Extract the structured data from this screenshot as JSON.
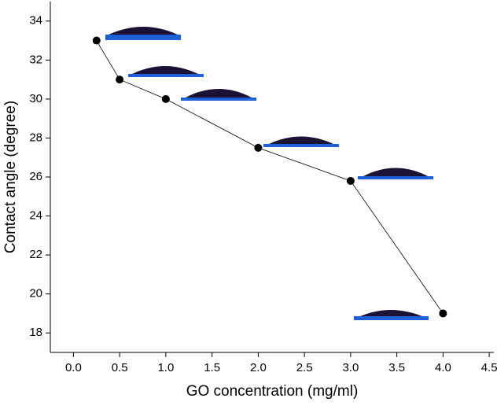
{
  "chart_data": {
    "type": "line",
    "x_label": "GO concentration (mg/ml)",
    "y_label": "Contact angle (degree)",
    "x": [
      0.25,
      0.5,
      1.0,
      2.0,
      3.0,
      4.0
    ],
    "series": [
      {
        "color": "#000000",
        "values": [
          33,
          31,
          30,
          27.5,
          25.8,
          19
        ]
      }
    ],
    "xlim": [
      -0.25,
      4.55
    ],
    "ylim": [
      17,
      35
    ],
    "xticks": [
      {
        "value": 0,
        "label": "0.0"
      },
      {
        "value": 0.5,
        "label": "0.5"
      },
      {
        "value": 1,
        "label": "1.0"
      },
      {
        "value": 1.5,
        "label": "1.5"
      },
      {
        "value": 2,
        "label": "2.0"
      },
      {
        "value": 2.5,
        "label": "2.5"
      },
      {
        "value": 3,
        "label": "3.0"
      },
      {
        "value": 3.5,
        "label": "3.5"
      },
      {
        "value": 4,
        "label": "4.0"
      },
      {
        "value": 4.5,
        "label": "4.5"
      }
    ],
    "yticks": [
      18,
      20,
      22,
      24,
      26,
      28,
      30,
      32,
      34
    ],
    "grid": false
  }
}
